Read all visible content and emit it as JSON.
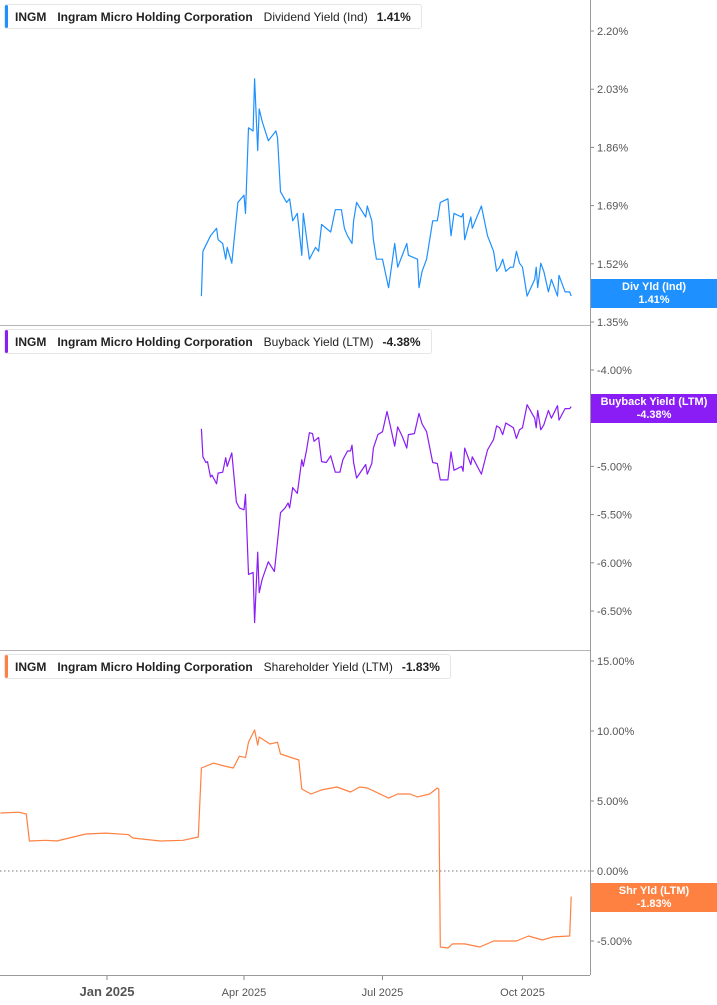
{
  "colors": {
    "dividend": "#1e90ff",
    "buyback": "#8a1cf5",
    "shareholder": "#ff8142",
    "axis": "#999999"
  },
  "legends": [
    {
      "ticker": "INGM",
      "company": "Ingram Micro Holding Corporation",
      "metric": "Dividend Yield (Ind)",
      "value": "1.41%"
    },
    {
      "ticker": "INGM",
      "company": "Ingram Micro Holding Corporation",
      "metric": "Buyback Yield (LTM)",
      "value": "-4.38%"
    },
    {
      "ticker": "INGM",
      "company": "Ingram Micro Holding Corporation",
      "metric": "Shareholder Yield (LTM)",
      "value": "-1.83%"
    }
  ],
  "tags": [
    {
      "label": "Div Yld (Ind)",
      "value": "1.41%"
    },
    {
      "label": "Buyback Yield (LTM)",
      "value": "-4.38%"
    },
    {
      "label": "Shr Yld (LTM)",
      "value": "-1.83%"
    }
  ],
  "x_axis": {
    "ticks": [
      {
        "label": "Jan 2025",
        "date": "2025-01-01",
        "bold": true
      },
      {
        "label": "Apr 2025",
        "date": "2025-04-01",
        "bold": false
      },
      {
        "label": "Jul 2025",
        "date": "2025-07-01",
        "bold": false
      },
      {
        "label": "Oct 2025",
        "date": "2025-10-01",
        "bold": false
      }
    ]
  },
  "chart_data": [
    {
      "type": "line",
      "name": "Dividend Yield (Ind)",
      "scale": "log",
      "grid": false,
      "yticks": [
        "2.20%",
        "2.03%",
        "1.86%",
        "1.69%",
        "1.52%",
        "1.35%"
      ],
      "ylim": [
        1.35,
        2.2
      ],
      "points": [
        [
          "2025-03-04",
          1.41
        ],
        [
          "2025-03-05",
          1.52
        ],
        [
          "2025-03-10",
          1.56
        ],
        [
          "2025-03-14",
          1.58
        ],
        [
          "2025-03-15",
          1.55
        ],
        [
          "2025-03-18",
          1.54
        ],
        [
          "2025-03-20",
          1.5
        ],
        [
          "2025-03-21",
          1.53
        ],
        [
          "2025-03-24",
          1.49
        ],
        [
          "2025-03-28",
          1.65
        ],
        [
          "2025-04-01",
          1.67
        ],
        [
          "2025-04-02",
          1.62
        ],
        [
          "2025-04-04",
          1.87
        ],
        [
          "2025-04-07",
          1.86
        ],
        [
          "2025-04-08",
          2.03
        ],
        [
          "2025-04-10",
          1.8
        ],
        [
          "2025-04-11",
          1.93
        ],
        [
          "2025-04-13",
          1.89
        ],
        [
          "2025-04-17",
          1.83
        ],
        [
          "2025-04-22",
          1.86
        ],
        [
          "2025-04-23",
          1.84
        ],
        [
          "2025-04-25",
          1.68
        ],
        [
          "2025-04-29",
          1.65
        ],
        [
          "2025-05-01",
          1.66
        ],
        [
          "2025-05-03",
          1.6
        ],
        [
          "2025-05-06",
          1.62
        ],
        [
          "2025-05-09",
          1.51
        ],
        [
          "2025-05-10",
          1.62
        ],
        [
          "2025-05-14",
          1.5
        ],
        [
          "2025-05-18",
          1.53
        ],
        [
          "2025-05-20",
          1.52
        ],
        [
          "2025-05-22",
          1.59
        ],
        [
          "2025-05-28",
          1.57
        ],
        [
          "2025-05-31",
          1.63
        ],
        [
          "2025-06-04",
          1.63
        ],
        [
          "2025-06-06",
          1.58
        ],
        [
          "2025-06-08",
          1.56
        ],
        [
          "2025-06-11",
          1.54
        ],
        [
          "2025-06-12",
          1.6
        ],
        [
          "2025-06-14",
          1.65
        ],
        [
          "2025-06-20",
          1.61
        ],
        [
          "2025-06-21",
          1.64
        ],
        [
          "2025-06-24",
          1.6
        ],
        [
          "2025-06-25",
          1.55
        ],
        [
          "2025-06-27",
          1.5
        ],
        [
          "2025-07-01",
          1.5
        ],
        [
          "2025-07-05",
          1.43
        ],
        [
          "2025-07-09",
          1.54
        ],
        [
          "2025-07-11",
          1.48
        ],
        [
          "2025-07-15",
          1.52
        ],
        [
          "2025-07-17",
          1.54
        ],
        [
          "2025-07-18",
          1.51
        ],
        [
          "2025-07-24",
          1.5
        ],
        [
          "2025-07-25",
          1.43
        ],
        [
          "2025-07-27",
          1.47
        ],
        [
          "2025-07-30",
          1.5
        ],
        [
          "2025-08-03",
          1.6
        ],
        [
          "2025-08-06",
          1.6
        ],
        [
          "2025-08-08",
          1.65
        ],
        [
          "2025-08-13",
          1.66
        ],
        [
          "2025-08-15",
          1.56
        ],
        [
          "2025-08-17",
          1.62
        ],
        [
          "2025-08-22",
          1.61
        ],
        [
          "2025-08-23",
          1.62
        ],
        [
          "2025-08-24",
          1.55
        ],
        [
          "2025-08-28",
          1.61
        ],
        [
          "2025-08-29",
          1.58
        ],
        [
          "2025-09-04",
          1.64
        ],
        [
          "2025-09-08",
          1.56
        ],
        [
          "2025-09-12",
          1.52
        ],
        [
          "2025-09-14",
          1.47
        ],
        [
          "2025-09-16",
          1.48
        ],
        [
          "2025-09-18",
          1.5
        ],
        [
          "2025-09-20",
          1.47
        ],
        [
          "2025-09-23",
          1.48
        ],
        [
          "2025-09-25",
          1.48
        ],
        [
          "2025-09-27",
          1.52
        ],
        [
          "2025-09-29",
          1.49
        ],
        [
          "2025-10-01",
          1.48
        ],
        [
          "2025-10-04",
          1.41
        ],
        [
          "2025-10-09",
          1.45
        ],
        [
          "2025-10-10",
          1.48
        ],
        [
          "2025-10-11",
          1.43
        ],
        [
          "2025-10-13",
          1.49
        ],
        [
          "2025-10-15",
          1.47
        ],
        [
          "2025-10-18",
          1.42
        ],
        [
          "2025-10-20",
          1.45
        ],
        [
          "2025-10-24",
          1.41
        ],
        [
          "2025-10-25",
          1.46
        ],
        [
          "2025-10-29",
          1.42
        ],
        [
          "2025-11-01",
          1.42
        ],
        [
          "2025-11-02",
          1.41
        ]
      ]
    },
    {
      "type": "line",
      "name": "Buyback Yield (LTM)",
      "scale": "linear",
      "grid": false,
      "yticks": [
        "-4.00%",
        "-4.50%",
        "-5.00%",
        "-5.50%",
        "-6.00%",
        "-6.50%"
      ],
      "ylim": [
        -6.5,
        -4.0
      ],
      "points": [
        [
          "2025-03-04",
          -4.61
        ],
        [
          "2025-03-05",
          -4.9
        ],
        [
          "2025-03-07",
          -4.96
        ],
        [
          "2025-03-08",
          -4.95
        ],
        [
          "2025-03-10",
          -5.11
        ],
        [
          "2025-03-11",
          -5.09
        ],
        [
          "2025-03-14",
          -5.18
        ],
        [
          "2025-03-15",
          -5.07
        ],
        [
          "2025-03-18",
          -5.06
        ],
        [
          "2025-03-20",
          -4.91
        ],
        [
          "2025-03-21",
          -5.0
        ],
        [
          "2025-03-24",
          -4.86
        ],
        [
          "2025-03-27",
          -5.37
        ],
        [
          "2025-03-29",
          -5.43
        ],
        [
          "2025-04-01",
          -5.45
        ],
        [
          "2025-04-02",
          -5.29
        ],
        [
          "2025-04-04",
          -6.12
        ],
        [
          "2025-04-07",
          -6.1
        ],
        [
          "2025-04-08",
          -6.62
        ],
        [
          "2025-04-10",
          -5.89
        ],
        [
          "2025-04-11",
          -6.31
        ],
        [
          "2025-04-13",
          -6.17
        ],
        [
          "2025-04-17",
          -5.99
        ],
        [
          "2025-04-21",
          -6.09
        ],
        [
          "2025-04-25",
          -5.48
        ],
        [
          "2025-04-28",
          -5.43
        ],
        [
          "2025-04-30",
          -5.38
        ],
        [
          "2025-05-01",
          -5.43
        ],
        [
          "2025-05-03",
          -5.22
        ],
        [
          "2025-05-06",
          -5.28
        ],
        [
          "2025-05-09",
          -4.93
        ],
        [
          "2025-05-10",
          -5.0
        ],
        [
          "2025-05-12",
          -4.84
        ],
        [
          "2025-05-14",
          -4.65
        ],
        [
          "2025-05-16",
          -4.66
        ],
        [
          "2025-05-17",
          -4.74
        ],
        [
          "2025-05-20",
          -4.7
        ],
        [
          "2025-05-22",
          -4.95
        ],
        [
          "2025-05-25",
          -4.96
        ],
        [
          "2025-05-28",
          -4.89
        ],
        [
          "2025-05-31",
          -5.06
        ],
        [
          "2025-06-03",
          -5.06
        ],
        [
          "2025-06-05",
          -4.93
        ],
        [
          "2025-06-08",
          -4.84
        ],
        [
          "2025-06-10",
          -4.84
        ],
        [
          "2025-06-11",
          -4.78
        ],
        [
          "2025-06-12",
          -4.96
        ],
        [
          "2025-06-14",
          -5.12
        ],
        [
          "2025-06-20",
          -4.98
        ],
        [
          "2025-06-21",
          -5.08
        ],
        [
          "2025-06-24",
          -4.97
        ],
        [
          "2025-06-25",
          -4.81
        ],
        [
          "2025-06-28",
          -4.67
        ],
        [
          "2025-07-01",
          -4.64
        ],
        [
          "2025-07-04",
          -4.43
        ],
        [
          "2025-07-06",
          -4.57
        ],
        [
          "2025-07-09",
          -4.79
        ],
        [
          "2025-07-11",
          -4.59
        ],
        [
          "2025-07-14",
          -4.69
        ],
        [
          "2025-07-17",
          -4.81
        ],
        [
          "2025-07-18",
          -4.67
        ],
        [
          "2025-07-22",
          -4.66
        ],
        [
          "2025-07-25",
          -4.45
        ],
        [
          "2025-07-27",
          -4.56
        ],
        [
          "2025-07-30",
          -4.64
        ],
        [
          "2025-08-03",
          -4.96
        ],
        [
          "2025-08-06",
          -4.97
        ],
        [
          "2025-08-08",
          -5.14
        ],
        [
          "2025-08-13",
          -5.14
        ],
        [
          "2025-08-15",
          -4.85
        ],
        [
          "2025-08-17",
          -5.04
        ],
        [
          "2025-08-22",
          -5.0
        ],
        [
          "2025-08-23",
          -5.05
        ],
        [
          "2025-08-24",
          -4.81
        ],
        [
          "2025-08-28",
          -4.98
        ],
        [
          "2025-08-29",
          -4.9
        ],
        [
          "2025-09-04",
          -5.08
        ],
        [
          "2025-09-08",
          -4.83
        ],
        [
          "2025-09-12",
          -4.72
        ],
        [
          "2025-09-14",
          -4.58
        ],
        [
          "2025-09-16",
          -4.6
        ],
        [
          "2025-09-18",
          -4.67
        ],
        [
          "2025-09-20",
          -4.55
        ],
        [
          "2025-09-25",
          -4.6
        ],
        [
          "2025-09-27",
          -4.71
        ],
        [
          "2025-09-29",
          -4.62
        ],
        [
          "2025-10-01",
          -4.6
        ],
        [
          "2025-10-04",
          -4.36
        ],
        [
          "2025-10-09",
          -4.5
        ],
        [
          "2025-10-10",
          -4.6
        ],
        [
          "2025-10-11",
          -4.42
        ],
        [
          "2025-10-13",
          -4.62
        ],
        [
          "2025-10-15",
          -4.57
        ],
        [
          "2025-10-18",
          -4.42
        ],
        [
          "2025-10-20",
          -4.5
        ],
        [
          "2025-10-24",
          -4.37
        ],
        [
          "2025-10-25",
          -4.52
        ],
        [
          "2025-10-29",
          -4.4
        ],
        [
          "2025-11-01",
          -4.4
        ],
        [
          "2025-11-02",
          -4.38
        ]
      ]
    },
    {
      "type": "line",
      "name": "Shareholder Yield (LTM)",
      "scale": "linear",
      "grid": false,
      "zero_line": true,
      "yticks": [
        "15.00%",
        "10.00%",
        "5.00%",
        "0.00%",
        "-5.00%"
      ],
      "ylim": [
        -5.0,
        15.0
      ],
      "points": [
        [
          "2024-10-23",
          4.14
        ],
        [
          "2024-11-04",
          4.2
        ],
        [
          "2024-11-09",
          4.07
        ],
        [
          "2024-11-11",
          2.14
        ],
        [
          "2024-11-22",
          2.19
        ],
        [
          "2024-11-29",
          2.14
        ],
        [
          "2024-12-18",
          2.64
        ],
        [
          "2024-12-31",
          2.71
        ],
        [
          "2025-01-15",
          2.6
        ],
        [
          "2025-01-18",
          2.36
        ],
        [
          "2025-02-05",
          2.14
        ],
        [
          "2025-02-20",
          2.19
        ],
        [
          "2025-03-02",
          2.43
        ],
        [
          "2025-03-04",
          7.36
        ],
        [
          "2025-03-12",
          7.71
        ],
        [
          "2025-03-19",
          7.5
        ],
        [
          "2025-03-25",
          7.36
        ],
        [
          "2025-03-29",
          8.2
        ],
        [
          "2025-04-02",
          8.1
        ],
        [
          "2025-04-04",
          9.2
        ],
        [
          "2025-04-08",
          10.07
        ],
        [
          "2025-04-10",
          9.0
        ],
        [
          "2025-04-11",
          9.57
        ],
        [
          "2025-04-18",
          9.07
        ],
        [
          "2025-04-23",
          9.2
        ],
        [
          "2025-04-25",
          8.36
        ],
        [
          "2025-05-03",
          8.07
        ],
        [
          "2025-05-07",
          7.93
        ],
        [
          "2025-05-09",
          5.86
        ],
        [
          "2025-05-15",
          5.5
        ],
        [
          "2025-05-22",
          5.79
        ],
        [
          "2025-06-01",
          6.0
        ],
        [
          "2025-06-10",
          5.64
        ],
        [
          "2025-06-16",
          6.0
        ],
        [
          "2025-06-21",
          5.93
        ],
        [
          "2025-07-05",
          5.21
        ],
        [
          "2025-07-11",
          5.5
        ],
        [
          "2025-07-19",
          5.5
        ],
        [
          "2025-07-24",
          5.29
        ],
        [
          "2025-08-01",
          5.5
        ],
        [
          "2025-08-06",
          5.93
        ],
        [
          "2025-08-07",
          5.86
        ],
        [
          "2025-08-08",
          -5.43
        ],
        [
          "2025-08-13",
          -5.5
        ],
        [
          "2025-08-16",
          -5.21
        ],
        [
          "2025-08-24",
          -5.21
        ],
        [
          "2025-09-03",
          -5.43
        ],
        [
          "2025-09-12",
          -5.0
        ],
        [
          "2025-09-27",
          -5.0
        ],
        [
          "2025-10-05",
          -4.64
        ],
        [
          "2025-10-14",
          -4.93
        ],
        [
          "2025-10-21",
          -4.71
        ],
        [
          "2025-11-01",
          -4.64
        ],
        [
          "2025-11-02",
          -1.83
        ]
      ]
    }
  ]
}
